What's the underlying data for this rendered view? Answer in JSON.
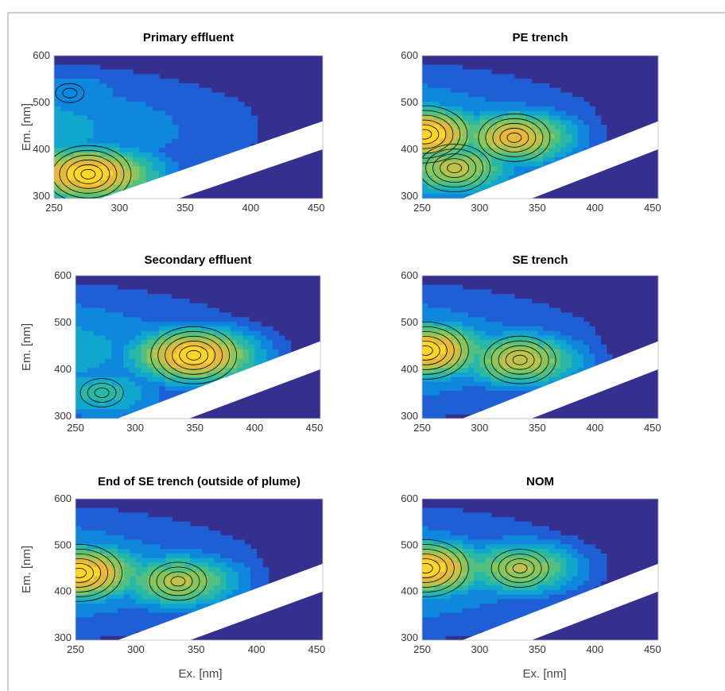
{
  "figure": {
    "x_label": "Ex. [nm]",
    "y_label": "Em. [nm]"
  },
  "colors": {
    "levels": [
      "#35308f",
      "#1f5fd6",
      "#0f87dd",
      "#11a6ce",
      "#2ab8a6",
      "#53c081",
      "#88c55c",
      "#bfc24a",
      "#e7b93a",
      "#fbd527"
    ],
    "scatter_mask": "#ffffff",
    "contour_line": "#000000"
  },
  "chart_data": [
    {
      "type": "heatmap",
      "title": "Primary effluent",
      "x_ticks": [
        250,
        300,
        350,
        400,
        450
      ],
      "y_ticks": [
        300,
        400,
        500,
        600
      ],
      "xlim": [
        250,
        455
      ],
      "ylim": [
        295,
        600
      ],
      "contour_levels": 10,
      "peaks": [
        {
          "ex": 276,
          "em": 347,
          "intensity": 1.0
        },
        {
          "ex": 262,
          "em": 520,
          "intensity": 0.28
        }
      ]
    },
    {
      "type": "heatmap",
      "title": "PE trench",
      "x_ticks": [
        250,
        300,
        350,
        400,
        450
      ],
      "y_ticks": [
        300,
        400,
        500,
        600
      ],
      "xlim": [
        250,
        455
      ],
      "ylim": [
        295,
        600
      ],
      "contour_levels": 10,
      "peaks": [
        {
          "ex": 252,
          "em": 432,
          "intensity": 1.0
        },
        {
          "ex": 330,
          "em": 425,
          "intensity": 0.86
        },
        {
          "ex": 278,
          "em": 360,
          "intensity": 0.75
        }
      ]
    },
    {
      "type": "heatmap",
      "title": "Secondary effluent",
      "x_ticks": [
        250,
        300,
        350,
        400,
        450
      ],
      "y_ticks": [
        300,
        400,
        500,
        600
      ],
      "xlim": [
        250,
        455
      ],
      "ylim": [
        295,
        600
      ],
      "contour_levels": 10,
      "peaks": [
        {
          "ex": 349,
          "em": 430,
          "intensity": 1.0
        },
        {
          "ex": 272,
          "em": 350,
          "intensity": 0.45
        }
      ]
    },
    {
      "type": "heatmap",
      "title": "SE trench",
      "x_ticks": [
        250,
        300,
        350,
        400,
        450
      ],
      "y_ticks": [
        300,
        400,
        500,
        600
      ],
      "xlim": [
        250,
        455
      ],
      "ylim": [
        295,
        600
      ],
      "contour_levels": 10,
      "peaks": [
        {
          "ex": 253,
          "em": 440,
          "intensity": 1.0
        },
        {
          "ex": 335,
          "em": 420,
          "intensity": 0.78
        }
      ]
    },
    {
      "type": "heatmap",
      "title": "End of SE trench (outside of plume)",
      "x_ticks": [
        250,
        300,
        350,
        400,
        450
      ],
      "y_ticks": [
        300,
        400,
        500,
        600
      ],
      "xlim": [
        250,
        455
      ],
      "ylim": [
        295,
        600
      ],
      "contour_levels": 10,
      "peaks": [
        {
          "ex": 253,
          "em": 440,
          "intensity": 1.0
        },
        {
          "ex": 335,
          "em": 422,
          "intensity": 0.72
        }
      ]
    },
    {
      "type": "heatmap",
      "title": "NOM",
      "x_ticks": [
        250,
        300,
        350,
        400,
        450
      ],
      "y_ticks": [
        300,
        400,
        500,
        600
      ],
      "xlim": [
        250,
        455
      ],
      "ylim": [
        295,
        600
      ],
      "contour_levels": 10,
      "peaks": [
        {
          "ex": 253,
          "em": 450,
          "intensity": 1.0
        },
        {
          "ex": 335,
          "em": 450,
          "intensity": 0.72
        }
      ]
    }
  ]
}
